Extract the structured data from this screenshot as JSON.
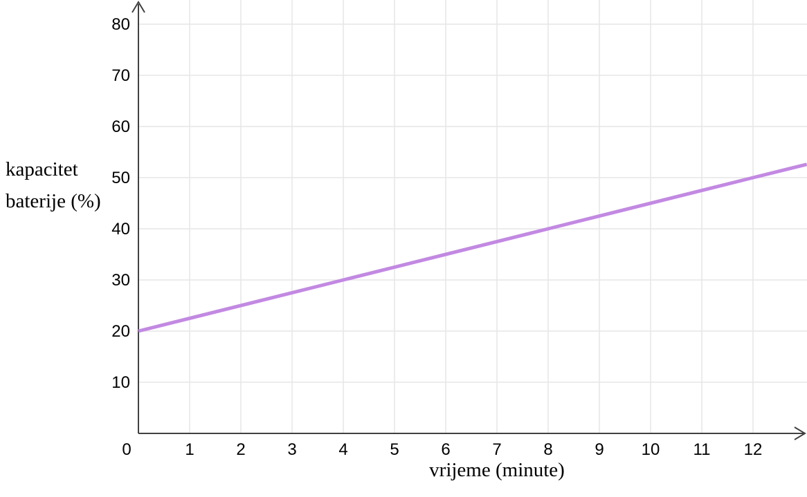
{
  "chart_data": {
    "type": "line",
    "title": "",
    "xlabel": "vrijeme (minute)",
    "ylabel": "kapacitet baterije (%)",
    "ylabel_lines": [
      "kapacitet",
      "baterije (%)"
    ],
    "x_ticks": [
      0,
      1,
      2,
      3,
      4,
      5,
      6,
      7,
      8,
      9,
      10,
      11,
      12
    ],
    "y_ticks": [
      10,
      20,
      30,
      40,
      50,
      60,
      70,
      80
    ],
    "xlim": [
      0,
      13.05
    ],
    "ylim": [
      0,
      84.5
    ],
    "grid": true,
    "legend": false,
    "series": [
      {
        "name": "kapacitet baterije (%)",
        "color": "#C289E2",
        "points": [
          [
            0,
            20
          ],
          [
            4,
            30
          ],
          [
            8,
            40
          ],
          [
            12,
            50
          ],
          [
            13.05,
            52.6
          ]
        ]
      }
    ]
  },
  "colors": {
    "background": "#ffffff",
    "grid": "#e6e6e6",
    "axis": "#404040",
    "text": "#000000",
    "line": "#C289E2"
  }
}
